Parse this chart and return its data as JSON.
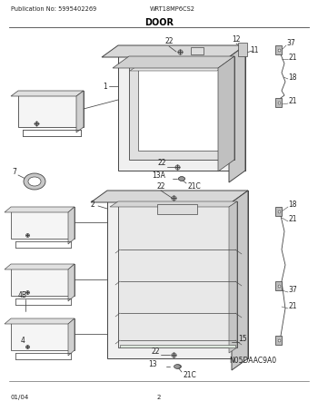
{
  "bg_color": "#ffffff",
  "pub_no": "Publication No: 5995402269",
  "model": "WRT18MP6CS2",
  "section": "DOOR",
  "diagram_code": "N05DAAC9A0",
  "date_code": "01/04",
  "page_no": "2",
  "line_color": "#444444",
  "text_color": "#222222",
  "label_fontsize": 5.5,
  "header_fontsize": 5.0
}
